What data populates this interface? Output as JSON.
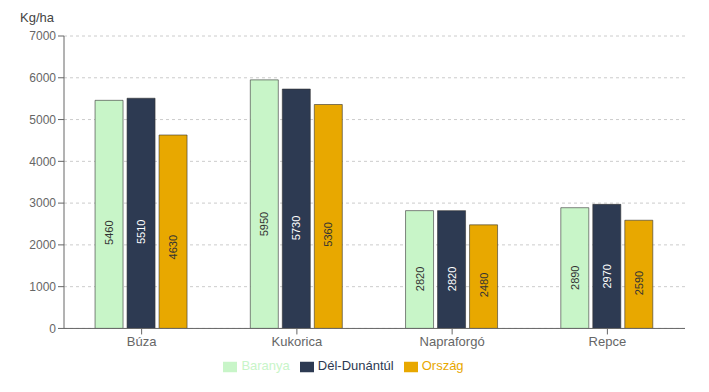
{
  "chart_data": {
    "type": "bar",
    "ylabel": "Kg/ha",
    "categories": [
      "Búza",
      "Kukorica",
      "Napraforgó",
      "Repce"
    ],
    "series": [
      {
        "name": "Baranya",
        "color": "#c8f5c8",
        "values": [
          5460,
          5950,
          2820,
          2890
        ]
      },
      {
        "name": "Dél-Dunántúl",
        "color": "#2d3a52",
        "values": [
          5510,
          5730,
          2820,
          2970
        ]
      },
      {
        "name": "Ország",
        "color": "#e8a800",
        "values": [
          4630,
          5360,
          2480,
          2590
        ]
      }
    ],
    "ylim": [
      0,
      7000
    ],
    "yticks": [
      0,
      1000,
      2000,
      3000,
      4000,
      5000,
      6000,
      7000
    ],
    "grid": true,
    "data_labels": true,
    "legend": "bottom"
  }
}
